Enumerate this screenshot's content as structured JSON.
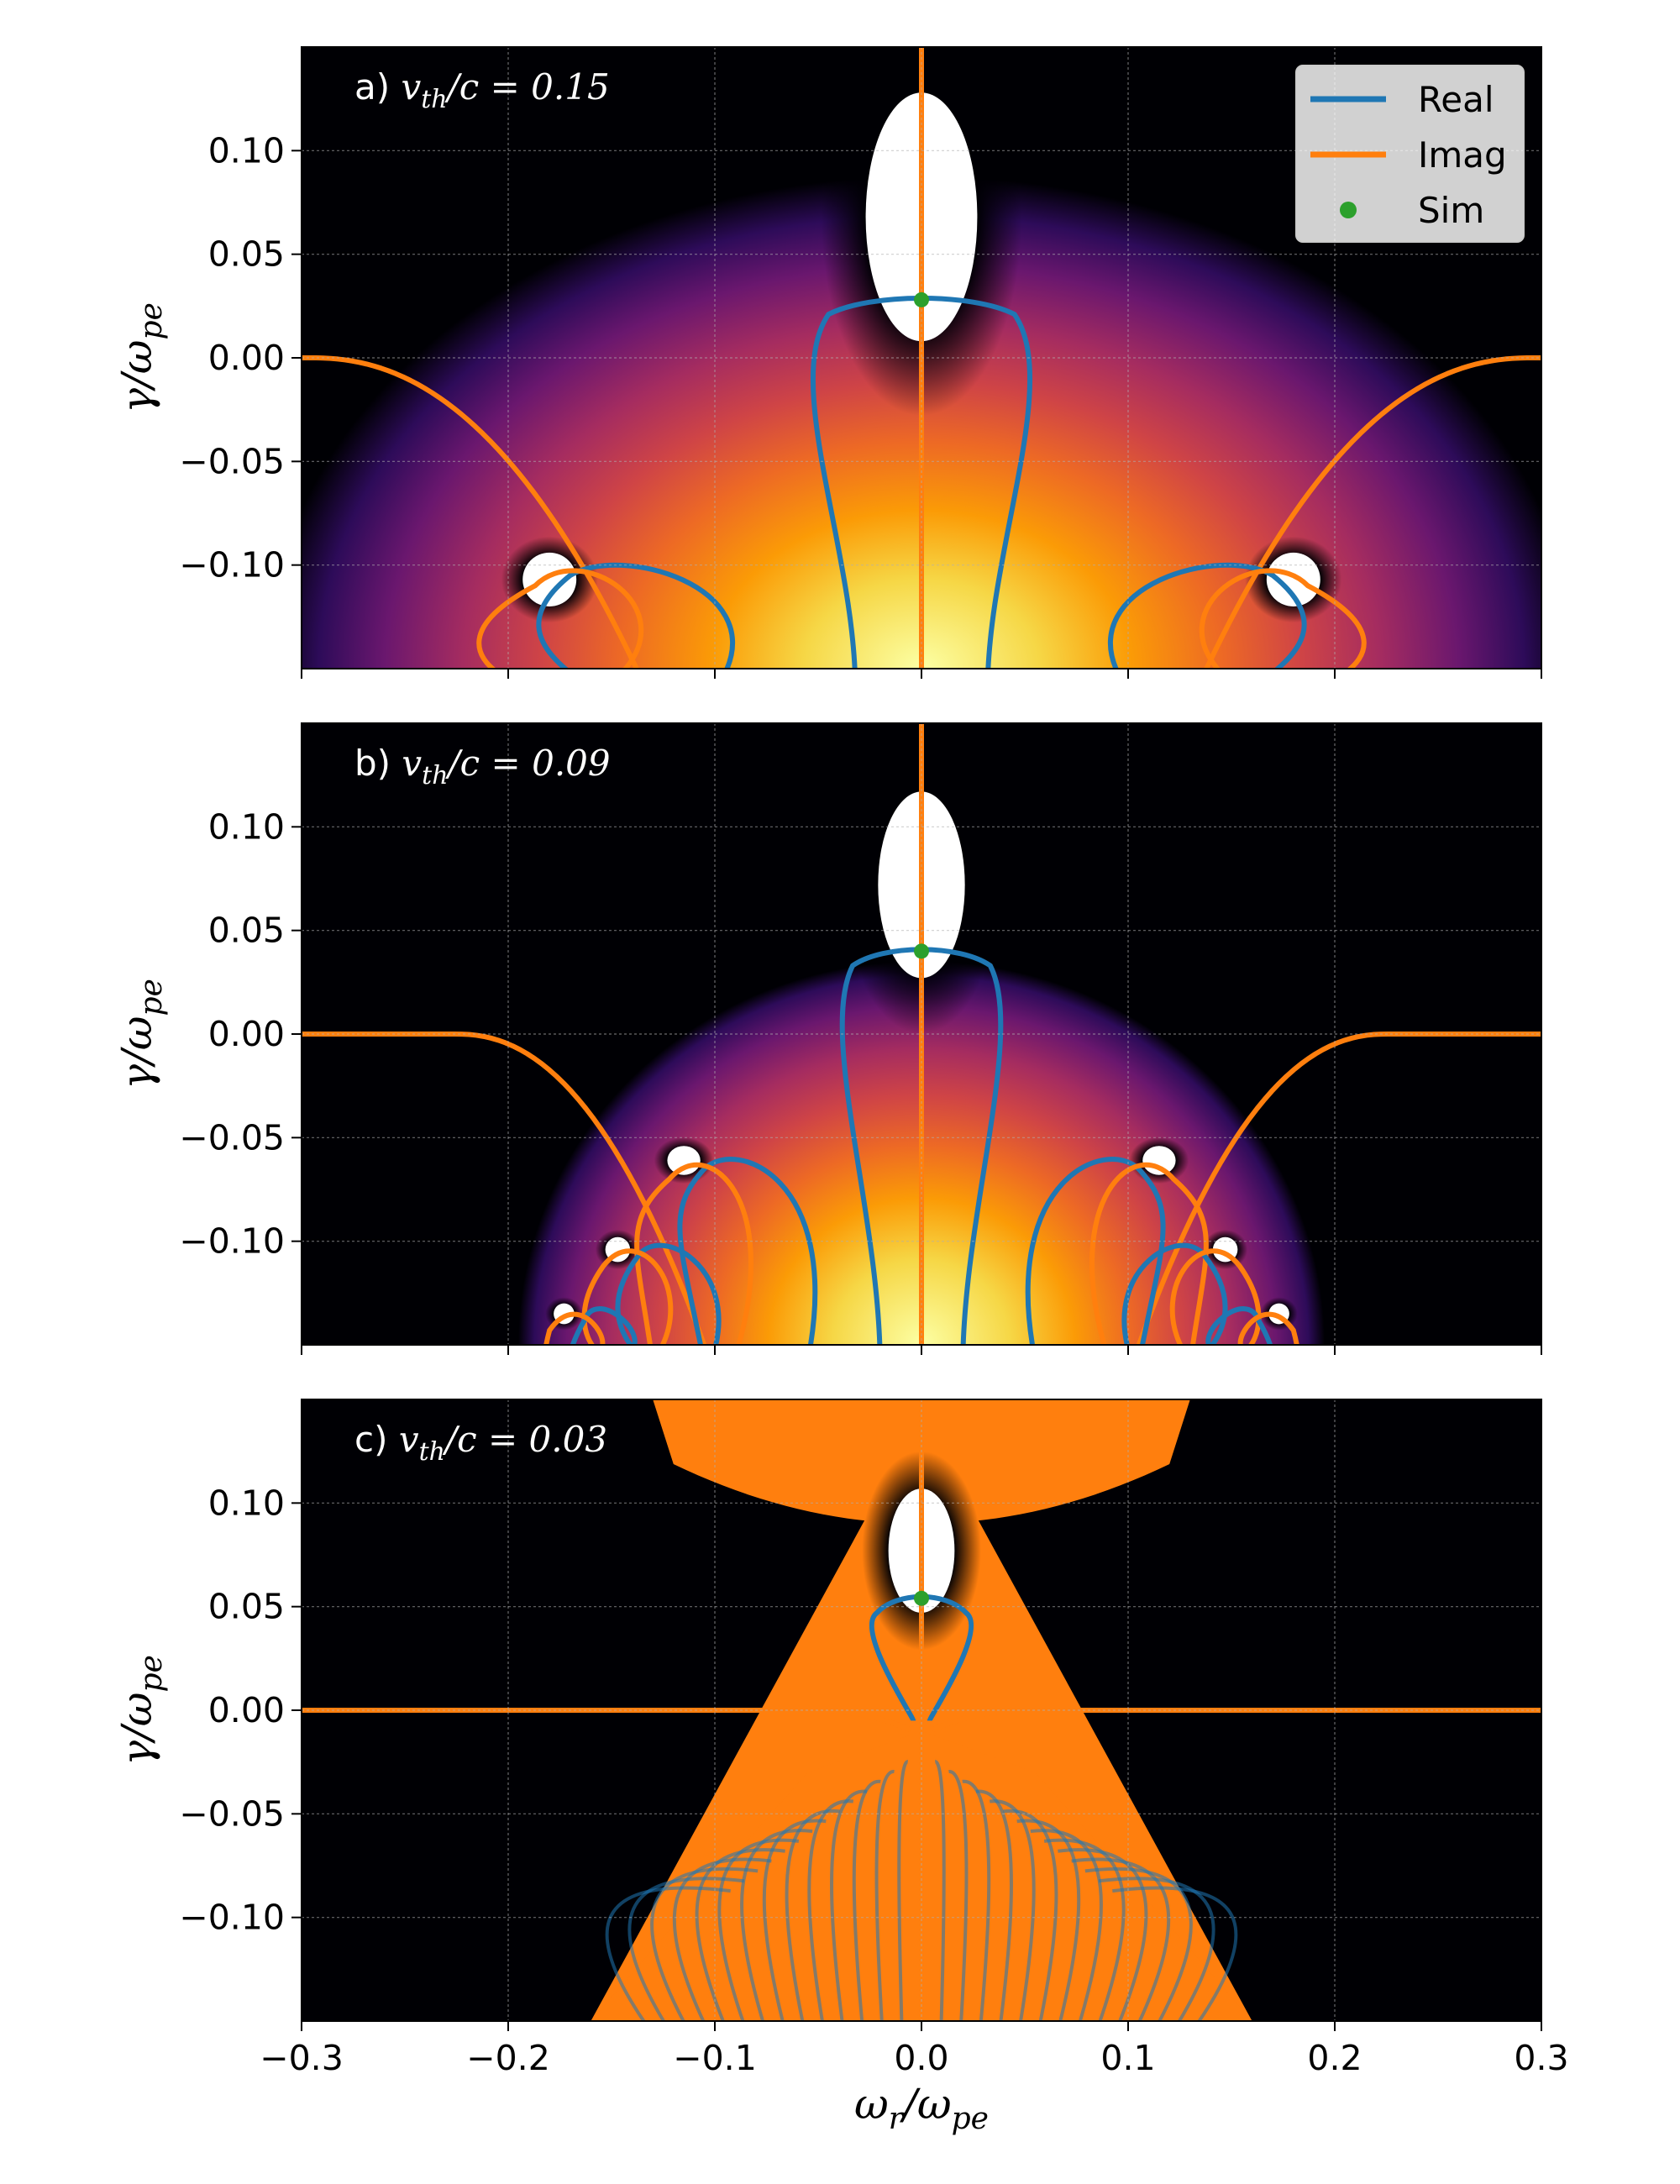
{
  "chart_data": {
    "type": "line",
    "panels": [
      {
        "label_text": "a) ",
        "label_math": "v",
        "label_sub": "th",
        "label_rest": "/c = 0.15",
        "vth_over_c": 0.15,
        "sim_point": {
          "x": 0.0,
          "y": 0.028
        },
        "ion_peaks": [
          {
            "x": 0.0,
            "y": 0.068,
            "rx": 0.027,
            "ry": 0.06
          },
          {
            "x": -0.18,
            "y": -0.107,
            "rx": 0.013,
            "ry": 0.013
          },
          {
            "x": 0.18,
            "y": -0.107,
            "rx": 0.013,
            "ry": 0.013
          }
        ]
      },
      {
        "label_text": "b) ",
        "label_math": "v",
        "label_sub": "th",
        "label_rest": "/c = 0.09",
        "vth_over_c": 0.09,
        "sim_point": {
          "x": 0.0,
          "y": 0.04
        },
        "ion_peaks": [
          {
            "x": 0.0,
            "y": 0.072,
            "rx": 0.021,
            "ry": 0.045
          },
          {
            "x": -0.115,
            "y": -0.061,
            "rx": 0.008,
            "ry": 0.007
          },
          {
            "x": 0.115,
            "y": -0.061,
            "rx": 0.008,
            "ry": 0.007
          },
          {
            "x": -0.147,
            "y": -0.104,
            "rx": 0.006,
            "ry": 0.006
          },
          {
            "x": 0.147,
            "y": -0.104,
            "rx": 0.006,
            "ry": 0.006
          },
          {
            "x": -0.173,
            "y": -0.135,
            "rx": 0.005,
            "ry": 0.005
          },
          {
            "x": 0.173,
            "y": -0.135,
            "rx": 0.005,
            "ry": 0.005
          }
        ]
      },
      {
        "label_text": "c) ",
        "label_math": "v",
        "label_sub": "th",
        "label_rest": "/c = 0.03",
        "vth_over_c": 0.03,
        "sim_point": {
          "x": 0.0,
          "y": 0.054
        },
        "ion_peaks": [
          {
            "x": 0.0,
            "y": 0.077,
            "rx": 0.016,
            "ry": 0.03
          }
        ]
      }
    ],
    "xlim": [
      -0.3,
      0.3
    ],
    "ylim": [
      -0.15,
      0.15
    ],
    "x_ticks": [
      -0.3,
      -0.2,
      -0.1,
      0.0,
      0.1,
      0.2,
      0.3
    ],
    "x_tick_labels": [
      "−0.3",
      "−0.2",
      "−0.1",
      "0.0",
      "0.1",
      "0.2",
      "0.3"
    ],
    "y_ticks": [
      -0.1,
      -0.05,
      0.0,
      0.05,
      0.1
    ],
    "y_tick_labels": [
      "−0.10",
      "−0.05",
      "0.00",
      "0.05",
      "0.10"
    ],
    "xlabel_main": "ω",
    "xlabel_sub": "r",
    "xlabel_den": "/ω",
    "xlabel_den_sub": "pe",
    "ylabel_main": "γ/ω",
    "ylabel_sub": "pe",
    "grid": true,
    "legend_placement": "top-right",
    "legend": [
      {
        "name": "Real",
        "marker": "line",
        "color": "#1f77b4"
      },
      {
        "name": "Imag",
        "marker": "line",
        "color": "#ff7f0e"
      },
      {
        "name": "Sim",
        "marker": "dot",
        "color": "#2ca02c"
      }
    ],
    "colors": {
      "real": "#1f77b4",
      "imag": "#ff7f0e",
      "sim": "#2ca02c",
      "background": "#000004"
    }
  }
}
